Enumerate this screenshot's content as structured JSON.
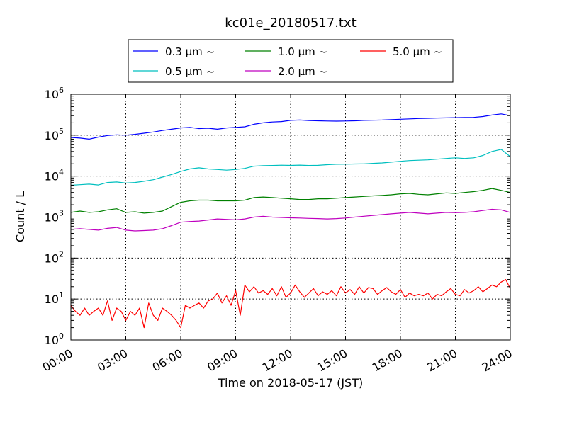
{
  "chart_data": {
    "type": "line",
    "title": "kc01e_20180517.txt",
    "xlabel": "Time on 2018-05-17 (JST)",
    "ylabel": "Count / L",
    "yscale": "log",
    "ylim": [
      1,
      1000000
    ],
    "y_ticks": [
      {
        "base": "10",
        "exp": "0"
      },
      {
        "base": "10",
        "exp": "1"
      },
      {
        "base": "10",
        "exp": "2"
      },
      {
        "base": "10",
        "exp": "3"
      },
      {
        "base": "10",
        "exp": "4"
      },
      {
        "base": "10",
        "exp": "5"
      },
      {
        "base": "10",
        "exp": "6"
      }
    ],
    "x_ticks": [
      "00:00",
      "03:00",
      "06:00",
      "09:00",
      "12:00",
      "15:00",
      "18:00",
      "21:00",
      "24:00"
    ],
    "grid": true,
    "legend_position": "top-center",
    "series": [
      {
        "name": "0.3 µm ~",
        "color": "#0000ff",
        "points": [
          [
            "00:00",
            88000
          ],
          [
            "00:30",
            85000
          ],
          [
            "01:00",
            80000
          ],
          [
            "01:30",
            90000
          ],
          [
            "02:00",
            98000
          ],
          [
            "02:30",
            102000
          ],
          [
            "03:00",
            100000
          ],
          [
            "03:30",
            105000
          ],
          [
            "04:00",
            112000
          ],
          [
            "04:30",
            120000
          ],
          [
            "05:00",
            130000
          ],
          [
            "05:30",
            140000
          ],
          [
            "06:00",
            150000
          ],
          [
            "06:30",
            155000
          ],
          [
            "07:00",
            145000
          ],
          [
            "07:30",
            148000
          ],
          [
            "08:00",
            140000
          ],
          [
            "08:30",
            150000
          ],
          [
            "09:00",
            155000
          ],
          [
            "09:30",
            160000
          ],
          [
            "10:00",
            185000
          ],
          [
            "10:30",
            200000
          ],
          [
            "11:00",
            210000
          ],
          [
            "11:30",
            215000
          ],
          [
            "12:00",
            230000
          ],
          [
            "12:30",
            235000
          ],
          [
            "13:00",
            228000
          ],
          [
            "13:30",
            225000
          ],
          [
            "14:00",
            222000
          ],
          [
            "14:30",
            220000
          ],
          [
            "15:00",
            222000
          ],
          [
            "15:30",
            225000
          ],
          [
            "16:00",
            230000
          ],
          [
            "16:30",
            232000
          ],
          [
            "17:00",
            235000
          ],
          [
            "17:30",
            240000
          ],
          [
            "18:00",
            245000
          ],
          [
            "18:30",
            250000
          ],
          [
            "19:00",
            255000
          ],
          [
            "19:30",
            258000
          ],
          [
            "20:00",
            262000
          ],
          [
            "20:30",
            265000
          ],
          [
            "21:00",
            268000
          ],
          [
            "21:30",
            270000
          ],
          [
            "22:00",
            272000
          ],
          [
            "22:30",
            285000
          ],
          [
            "23:00",
            310000
          ],
          [
            "23:30",
            330000
          ],
          [
            "24:00",
            300000
          ]
        ]
      },
      {
        "name": "0.5 µm ~",
        "color": "#00bfbf",
        "points": [
          [
            "00:00",
            6000
          ],
          [
            "00:30",
            6200
          ],
          [
            "01:00",
            6400
          ],
          [
            "01:30",
            6100
          ],
          [
            "02:00",
            7000
          ],
          [
            "02:30",
            7200
          ],
          [
            "03:00",
            6800
          ],
          [
            "03:30",
            7000
          ],
          [
            "04:00",
            7500
          ],
          [
            "04:30",
            8200
          ],
          [
            "05:00",
            9500
          ],
          [
            "05:30",
            11000
          ],
          [
            "06:00",
            13000
          ],
          [
            "06:30",
            15000
          ],
          [
            "07:00",
            16000
          ],
          [
            "07:30",
            15000
          ],
          [
            "08:00",
            14500
          ],
          [
            "08:30",
            14000
          ],
          [
            "09:00",
            14500
          ],
          [
            "09:30",
            15500
          ],
          [
            "10:00",
            17500
          ],
          [
            "10:30",
            18000
          ],
          [
            "11:00",
            18200
          ],
          [
            "11:30",
            18500
          ],
          [
            "12:00",
            18300
          ],
          [
            "12:30",
            18600
          ],
          [
            "13:00",
            18200
          ],
          [
            "13:30",
            18400
          ],
          [
            "14:00",
            19000
          ],
          [
            "14:30",
            19500
          ],
          [
            "15:00",
            19600
          ],
          [
            "15:30",
            19800
          ],
          [
            "16:00",
            20000
          ],
          [
            "16:30",
            20500
          ],
          [
            "17:00",
            21000
          ],
          [
            "17:30",
            22000
          ],
          [
            "18:00",
            23000
          ],
          [
            "18:30",
            24000
          ],
          [
            "19:00",
            24500
          ],
          [
            "19:30",
            25000
          ],
          [
            "20:00",
            26000
          ],
          [
            "20:30",
            27000
          ],
          [
            "21:00",
            28000
          ],
          [
            "21:30",
            27000
          ],
          [
            "22:00",
            28000
          ],
          [
            "22:30",
            32000
          ],
          [
            "23:00",
            40000
          ],
          [
            "23:30",
            45000
          ],
          [
            "24:00",
            30000
          ]
        ]
      },
      {
        "name": "1.0 µm ~",
        "color": "#008000",
        "points": [
          [
            "00:00",
            1300
          ],
          [
            "00:30",
            1400
          ],
          [
            "01:00",
            1300
          ],
          [
            "01:30",
            1350
          ],
          [
            "02:00",
            1500
          ],
          [
            "02:30",
            1600
          ],
          [
            "03:00",
            1300
          ],
          [
            "03:30",
            1350
          ],
          [
            "04:00",
            1250
          ],
          [
            "04:30",
            1300
          ],
          [
            "05:00",
            1400
          ],
          [
            "05:30",
            1800
          ],
          [
            "06:00",
            2300
          ],
          [
            "06:30",
            2500
          ],
          [
            "07:00",
            2600
          ],
          [
            "07:30",
            2600
          ],
          [
            "08:00",
            2500
          ],
          [
            "08:30",
            2500
          ],
          [
            "09:00",
            2500
          ],
          [
            "09:30",
            2600
          ],
          [
            "10:00",
            3000
          ],
          [
            "10:30",
            3100
          ],
          [
            "11:00",
            3000
          ],
          [
            "11:30",
            2900
          ],
          [
            "12:00",
            2800
          ],
          [
            "12:30",
            2700
          ],
          [
            "13:00",
            2700
          ],
          [
            "13:30",
            2800
          ],
          [
            "14:00",
            2800
          ],
          [
            "14:30",
            2900
          ],
          [
            "15:00",
            3000
          ],
          [
            "15:30",
            3100
          ],
          [
            "16:00",
            3200
          ],
          [
            "16:30",
            3300
          ],
          [
            "17:00",
            3400
          ],
          [
            "17:30",
            3500
          ],
          [
            "18:00",
            3700
          ],
          [
            "18:30",
            3800
          ],
          [
            "19:00",
            3600
          ],
          [
            "19:30",
            3500
          ],
          [
            "20:00",
            3700
          ],
          [
            "20:30",
            3900
          ],
          [
            "21:00",
            3800
          ],
          [
            "21:30",
            4000
          ],
          [
            "22:00",
            4200
          ],
          [
            "22:30",
            4500
          ],
          [
            "23:00",
            5000
          ],
          [
            "23:30",
            4500
          ],
          [
            "24:00",
            4000
          ]
        ]
      },
      {
        "name": "2.0 µm ~",
        "color": "#bf00bf",
        "points": [
          [
            "00:00",
            500
          ],
          [
            "00:30",
            520
          ],
          [
            "01:00",
            500
          ],
          [
            "01:30",
            480
          ],
          [
            "02:00",
            530
          ],
          [
            "02:30",
            560
          ],
          [
            "03:00",
            480
          ],
          [
            "03:30",
            460
          ],
          [
            "04:00",
            470
          ],
          [
            "04:30",
            480
          ],
          [
            "05:00",
            520
          ],
          [
            "05:30",
            620
          ],
          [
            "06:00",
            750
          ],
          [
            "06:30",
            780
          ],
          [
            "07:00",
            800
          ],
          [
            "07:30",
            850
          ],
          [
            "08:00",
            900
          ],
          [
            "08:30",
            880
          ],
          [
            "09:00",
            860
          ],
          [
            "09:30",
            900
          ],
          [
            "10:00",
            1000
          ],
          [
            "10:30",
            1050
          ],
          [
            "11:00",
            1000
          ],
          [
            "11:30",
            980
          ],
          [
            "12:00",
            960
          ],
          [
            "12:30",
            950
          ],
          [
            "13:00",
            930
          ],
          [
            "13:30",
            920
          ],
          [
            "14:00",
            900
          ],
          [
            "14:30",
            920
          ],
          [
            "15:00",
            950
          ],
          [
            "15:30",
            1000
          ],
          [
            "16:00",
            1050
          ],
          [
            "16:30",
            1100
          ],
          [
            "17:00",
            1150
          ],
          [
            "17:30",
            1200
          ],
          [
            "18:00",
            1250
          ],
          [
            "18:30",
            1300
          ],
          [
            "19:00",
            1250
          ],
          [
            "19:30",
            1200
          ],
          [
            "20:00",
            1250
          ],
          [
            "20:30",
            1300
          ],
          [
            "21:00",
            1280
          ],
          [
            "21:30",
            1300
          ],
          [
            "22:00",
            1350
          ],
          [
            "22:30",
            1450
          ],
          [
            "23:00",
            1550
          ],
          [
            "23:30",
            1500
          ],
          [
            "24:00",
            1300
          ]
        ]
      },
      {
        "name": "5.0 µm ~",
        "color": "#ff0000",
        "points": [
          [
            "00:00",
            7
          ],
          [
            "00:15",
            5
          ],
          [
            "00:30",
            4
          ],
          [
            "00:45",
            6
          ],
          [
            "01:00",
            4
          ],
          [
            "01:15",
            5
          ],
          [
            "01:30",
            6
          ],
          [
            "01:45",
            4
          ],
          [
            "02:00",
            9
          ],
          [
            "02:15",
            3
          ],
          [
            "02:30",
            6
          ],
          [
            "02:45",
            5
          ],
          [
            "03:00",
            3
          ],
          [
            "03:15",
            5
          ],
          [
            "03:30",
            4
          ],
          [
            "03:45",
            6
          ],
          [
            "04:00",
            2
          ],
          [
            "04:15",
            8
          ],
          [
            "04:30",
            4
          ],
          [
            "04:45",
            3
          ],
          [
            "05:00",
            6
          ],
          [
            "05:15",
            5
          ],
          [
            "05:30",
            4
          ],
          [
            "05:45",
            3
          ],
          [
            "06:00",
            2
          ],
          [
            "06:15",
            7
          ],
          [
            "06:30",
            6
          ],
          [
            "06:45",
            7
          ],
          [
            "07:00",
            8
          ],
          [
            "07:15",
            6
          ],
          [
            "07:30",
            9
          ],
          [
            "07:45",
            10
          ],
          [
            "08:00",
            14
          ],
          [
            "08:15",
            8
          ],
          [
            "08:30",
            12
          ],
          [
            "08:45",
            7
          ],
          [
            "09:00",
            16
          ],
          [
            "09:15",
            4
          ],
          [
            "09:30",
            22
          ],
          [
            "09:45",
            15
          ],
          [
            "10:00",
            20
          ],
          [
            "10:15",
            14
          ],
          [
            "10:30",
            16
          ],
          [
            "10:45",
            13
          ],
          [
            "11:00",
            18
          ],
          [
            "11:15",
            12
          ],
          [
            "11:30",
            20
          ],
          [
            "11:45",
            11
          ],
          [
            "12:00",
            14
          ],
          [
            "12:15",
            22
          ],
          [
            "12:30",
            15
          ],
          [
            "12:45",
            11
          ],
          [
            "13:00",
            14
          ],
          [
            "13:15",
            18
          ],
          [
            "13:30",
            12
          ],
          [
            "13:45",
            15
          ],
          [
            "14:00",
            13
          ],
          [
            "14:15",
            16
          ],
          [
            "14:30",
            12
          ],
          [
            "14:45",
            20
          ],
          [
            "15:00",
            14
          ],
          [
            "15:15",
            17
          ],
          [
            "15:30",
            13
          ],
          [
            "15:45",
            20
          ],
          [
            "16:00",
            14
          ],
          [
            "16:15",
            19
          ],
          [
            "16:30",
            18
          ],
          [
            "16:45",
            13
          ],
          [
            "17:00",
            16
          ],
          [
            "17:15",
            19
          ],
          [
            "17:30",
            15
          ],
          [
            "17:45",
            13
          ],
          [
            "18:00",
            17
          ],
          [
            "18:15",
            11
          ],
          [
            "18:30",
            14
          ],
          [
            "18:45",
            12
          ],
          [
            "19:00",
            13
          ],
          [
            "19:15",
            12
          ],
          [
            "19:30",
            14
          ],
          [
            "19:45",
            10
          ],
          [
            "20:00",
            13
          ],
          [
            "20:15",
            12
          ],
          [
            "20:30",
            15
          ],
          [
            "20:45",
            18
          ],
          [
            "21:00",
            13
          ],
          [
            "21:15",
            12
          ],
          [
            "21:30",
            17
          ],
          [
            "21:45",
            14
          ],
          [
            "22:00",
            16
          ],
          [
            "22:15",
            20
          ],
          [
            "22:30",
            15
          ],
          [
            "22:45",
            18
          ],
          [
            "23:00",
            22
          ],
          [
            "23:15",
            20
          ],
          [
            "23:30",
            26
          ],
          [
            "23:45",
            30
          ],
          [
            "24:00",
            18
          ]
        ]
      }
    ]
  }
}
